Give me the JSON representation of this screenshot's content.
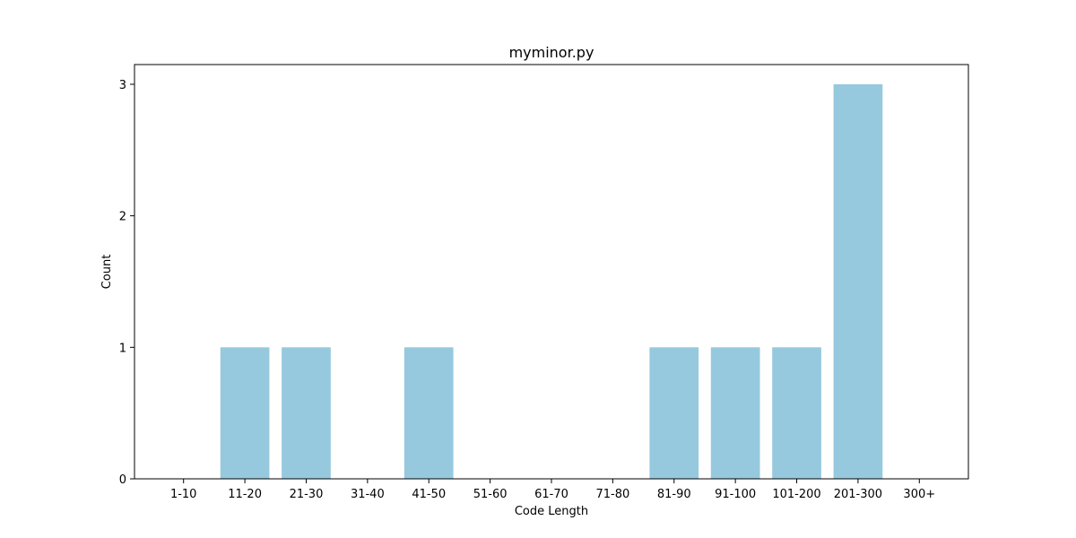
{
  "chart_data": {
    "type": "bar",
    "title": "myminor.py",
    "xlabel": "Code Length",
    "ylabel": "Count",
    "categories": [
      "1-10",
      "11-20",
      "21-30",
      "31-40",
      "41-50",
      "51-60",
      "61-70",
      "71-80",
      "81-90",
      "91-100",
      "101-200",
      "201-300",
      "300+"
    ],
    "values": [
      0,
      1,
      1,
      0,
      1,
      0,
      0,
      0,
      1,
      1,
      1,
      3,
      0
    ],
    "yticks": [
      "0",
      "1",
      "2",
      "3"
    ],
    "ylim": [
      0,
      3.15
    ],
    "grid": false,
    "bar_color": "#96c9dd"
  }
}
